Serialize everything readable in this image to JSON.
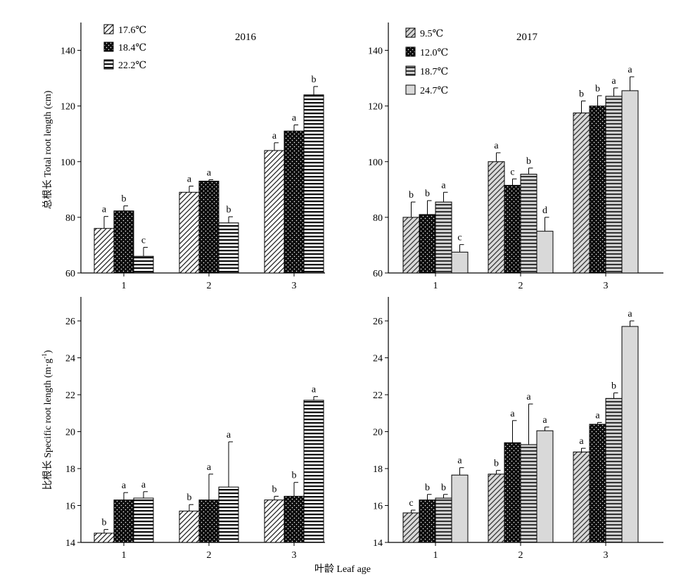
{
  "figure": {
    "xlabel": "叶龄 Leaf age",
    "ylabel_top": "总根长 Total root length (cm)",
    "ylabel_bottom_main": "比根长 Specific root length (m·g",
    "ylabel_bottom_sup": "-1",
    "ylabel_bottom_end": ")"
  },
  "chart_data": [
    {
      "type": "bar",
      "title": "2016",
      "categories": [
        "1",
        "2",
        "3"
      ],
      "ylim": [
        60,
        150
      ],
      "yticks": [
        60,
        80,
        100,
        120,
        140
      ],
      "legend_position": "top-left",
      "series": [
        {
          "name": "17.6℃",
          "pattern": "diag",
          "values": [
            76,
            89,
            104
          ],
          "errors": [
            4.3,
            2.2,
            2.8
          ],
          "letters": [
            "a",
            "a",
            "a"
          ]
        },
        {
          "name": "18.4℃",
          "pattern": "dots",
          "values": [
            82.3,
            93,
            111
          ],
          "errors": [
            1.8,
            0.5,
            2.2
          ],
          "letters": [
            "b",
            "a",
            "a"
          ]
        },
        {
          "name": "22.2℃",
          "pattern": "hstripe",
          "values": [
            66,
            78,
            124
          ],
          "errors": [
            3.2,
            2.2,
            3.0
          ],
          "letters": [
            "c",
            "b",
            "b"
          ]
        }
      ]
    },
    {
      "type": "bar",
      "title": "2017",
      "categories": [
        "1",
        "2",
        "3"
      ],
      "ylim": [
        60,
        150
      ],
      "yticks": [
        60,
        80,
        100,
        120,
        140
      ],
      "legend_position": "top-left",
      "series": [
        {
          "name": "9.5℃",
          "pattern": "diag-gray",
          "values": [
            80,
            100,
            117.5
          ],
          "errors": [
            5.5,
            3.2,
            4.3
          ],
          "letters": [
            "b",
            "a",
            "b"
          ]
        },
        {
          "name": "12.0℃",
          "pattern": "dots",
          "values": [
            81,
            91.5,
            120
          ],
          "errors": [
            5.0,
            2.3,
            3.7
          ],
          "letters": [
            "b",
            "c",
            "b"
          ]
        },
        {
          "name": "18.7℃",
          "pattern": "hstripe-gray",
          "values": [
            85.5,
            95.5,
            123.5
          ],
          "errors": [
            3.5,
            2.2,
            3.0
          ],
          "letters": [
            "a",
            "b",
            "a"
          ]
        },
        {
          "name": "24.7℃",
          "pattern": "gray",
          "values": [
            67.5,
            75,
            125.5
          ],
          "errors": [
            2.7,
            5.0,
            5.0
          ],
          "letters": [
            "c",
            "d",
            "a"
          ]
        }
      ]
    },
    {
      "type": "bar",
      "title": "",
      "categories": [
        "1",
        "2",
        "3"
      ],
      "ylim": [
        14,
        27.3
      ],
      "yticks": [
        14,
        16,
        18,
        20,
        22,
        24,
        26
      ],
      "series": [
        {
          "name": "17.6℃",
          "pattern": "diag",
          "values": [
            14.5,
            15.7,
            16.3
          ],
          "errors": [
            0.2,
            0.35,
            0.2
          ],
          "letters": [
            "b",
            "b",
            "b"
          ]
        },
        {
          "name": "18.4℃",
          "pattern": "dots",
          "values": [
            16.3,
            16.3,
            16.5
          ],
          "errors": [
            0.4,
            1.4,
            0.75
          ],
          "letters": [
            "a",
            "a",
            "b"
          ]
        },
        {
          "name": "22.2℃",
          "pattern": "hstripe",
          "values": [
            16.4,
            17.0,
            21.7
          ],
          "errors": [
            0.35,
            2.45,
            0.2
          ],
          "letters": [
            "a",
            "a",
            "a"
          ]
        }
      ]
    },
    {
      "type": "bar",
      "title": "",
      "categories": [
        "1",
        "2",
        "3"
      ],
      "ylim": [
        14,
        27.3
      ],
      "yticks": [
        14,
        16,
        18,
        20,
        22,
        24,
        26
      ],
      "series": [
        {
          "name": "9.5℃",
          "pattern": "diag-gray",
          "values": [
            15.6,
            17.7,
            18.9
          ],
          "errors": [
            0.15,
            0.2,
            0.2
          ],
          "letters": [
            "c",
            "b",
            "a"
          ]
        },
        {
          "name": "12.0℃",
          "pattern": "dots",
          "values": [
            16.3,
            19.4,
            20.4
          ],
          "errors": [
            0.3,
            1.2,
            0.1
          ],
          "letters": [
            "b",
            "a",
            "a"
          ]
        },
        {
          "name": "18.7℃",
          "pattern": "hstripe-gray",
          "values": [
            16.4,
            19.3,
            21.8
          ],
          "errors": [
            0.2,
            2.2,
            0.3
          ],
          "letters": [
            "b",
            "a",
            "b"
          ]
        },
        {
          "name": "24.7℃",
          "pattern": "gray",
          "values": [
            17.65,
            20.05,
            25.7
          ],
          "errors": [
            0.4,
            0.2,
            0.3
          ],
          "letters": [
            "a",
            "a",
            "a"
          ]
        }
      ]
    }
  ]
}
